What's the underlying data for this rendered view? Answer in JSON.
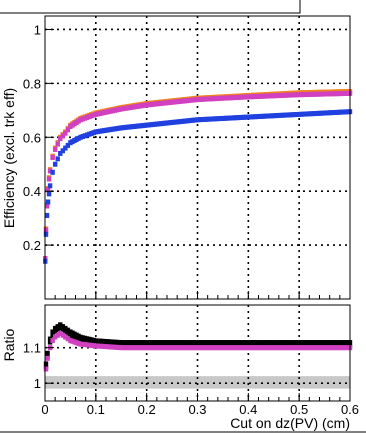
{
  "chart_data": [
    {
      "type": "scatter",
      "panel": "main",
      "ylabel": "Efficiency (excl. trk eff)",
      "xlim": [
        0,
        0.6
      ],
      "ylim": [
        0,
        1.05
      ],
      "yticks": [
        0.2,
        0.4,
        0.6,
        0.8,
        1
      ],
      "ytick_labels": [
        "0.2",
        "0.4",
        "0.6",
        "0.8",
        "1"
      ],
      "grid": true,
      "series": [
        {
          "color": "#f08020",
          "x": [
            0.0005,
            0.002,
            0.004,
            0.006,
            0.008,
            0.01,
            0.015,
            0.02,
            0.03,
            0.04,
            0.05,
            0.07,
            0.1,
            0.15,
            0.2,
            0.25,
            0.3,
            0.4,
            0.5,
            0.6
          ],
          "y": [
            0.15,
            0.26,
            0.35,
            0.41,
            0.45,
            0.48,
            0.53,
            0.56,
            0.6,
            0.62,
            0.645,
            0.67,
            0.69,
            0.71,
            0.725,
            0.735,
            0.745,
            0.755,
            0.765,
            0.77
          ]
        },
        {
          "color": "#d040c0",
          "x": [
            0.0005,
            0.002,
            0.004,
            0.006,
            0.008,
            0.01,
            0.015,
            0.02,
            0.03,
            0.04,
            0.05,
            0.07,
            0.1,
            0.15,
            0.2,
            0.25,
            0.3,
            0.4,
            0.5,
            0.6
          ],
          "y": [
            0.15,
            0.255,
            0.345,
            0.405,
            0.445,
            0.475,
            0.525,
            0.555,
            0.595,
            0.615,
            0.64,
            0.665,
            0.685,
            0.705,
            0.72,
            0.73,
            0.74,
            0.75,
            0.758,
            0.763
          ]
        },
        {
          "color": "#2040e0",
          "x": [
            0.0005,
            0.002,
            0.004,
            0.006,
            0.008,
            0.01,
            0.015,
            0.02,
            0.03,
            0.04,
            0.05,
            0.07,
            0.1,
            0.15,
            0.2,
            0.25,
            0.3,
            0.4,
            0.5,
            0.6
          ],
          "y": [
            0.14,
            0.24,
            0.31,
            0.36,
            0.39,
            0.42,
            0.47,
            0.5,
            0.54,
            0.56,
            0.58,
            0.6,
            0.62,
            0.635,
            0.645,
            0.655,
            0.665,
            0.675,
            0.685,
            0.695
          ]
        }
      ]
    },
    {
      "type": "scatter",
      "panel": "ratio",
      "title": "",
      "xlabel": "Cut on dz(PV) (cm)",
      "ylabel": "Ratio",
      "xlim": [
        0,
        0.6
      ],
      "ylim": [
        0.95,
        1.22
      ],
      "xticks": [
        0,
        0.1,
        0.2,
        0.3,
        0.4,
        0.5,
        0.6
      ],
      "xtick_labels": [
        "0",
        "0.1",
        "0.2",
        "0.3",
        "0.4",
        "0.5",
        "0.6"
      ],
      "yticks": [
        1,
        1.1
      ],
      "ytick_labels": [
        "1",
        "1.1"
      ],
      "grid": true,
      "band": {
        "color": "#c8c8c8",
        "lower": 0.985,
        "upper": 1.02
      },
      "series": [
        {
          "color": "#000000",
          "x": [
            0.002,
            0.005,
            0.01,
            0.015,
            0.02,
            0.025,
            0.03,
            0.04,
            0.05,
            0.07,
            0.1,
            0.15,
            0.2,
            0.3,
            0.4,
            0.5,
            0.6
          ],
          "y": [
            1.05,
            1.08,
            1.12,
            1.14,
            1.15,
            1.155,
            1.16,
            1.15,
            1.14,
            1.125,
            1.115,
            1.11,
            1.11,
            1.11,
            1.11,
            1.11,
            1.11
          ]
        },
        {
          "color": "#d040c0",
          "x": [
            0.002,
            0.005,
            0.01,
            0.015,
            0.02,
            0.025,
            0.03,
            0.04,
            0.05,
            0.07,
            0.1,
            0.15,
            0.2,
            0.3,
            0.4,
            0.5,
            0.6
          ],
          "y": [
            1.04,
            1.07,
            1.1,
            1.12,
            1.13,
            1.135,
            1.14,
            1.13,
            1.12,
            1.11,
            1.105,
            1.1,
            1.1,
            1.1,
            1.1,
            1.1,
            1.1
          ]
        }
      ]
    }
  ]
}
